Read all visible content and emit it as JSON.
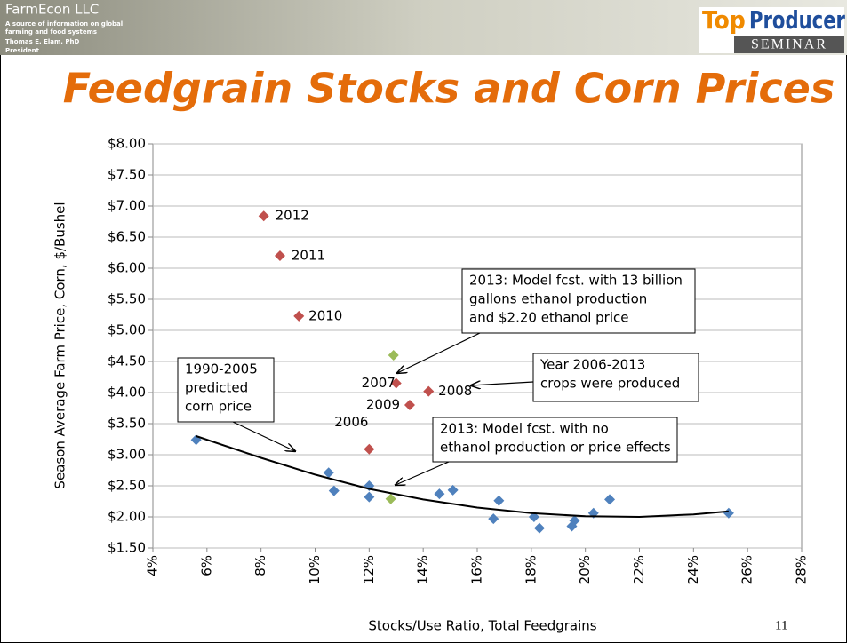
{
  "header": {
    "company": "FarmEcon LLC",
    "tagline": [
      "A source of information on global",
      "farming and food systems"
    ],
    "author": "Thomas E. Elam, PhD",
    "role": "President",
    "logo_top": "Top",
    "logo_producer": "Producer",
    "logo_seminar": "SEMINAR"
  },
  "slide_number": "11",
  "chart_data": {
    "type": "scatter",
    "title": "Feedgrain Stocks and Corn Prices",
    "xlabel": "Stocks/Use Ratio, Total Feedgrains",
    "ylabel": "Season Average Farm Price, Corn, $/Bushel",
    "xlim": [
      4,
      28
    ],
    "ylim": [
      1.5,
      8
    ],
    "xticks": [
      {
        "value": 4,
        "label": "4%"
      },
      {
        "value": 6,
        "label": "6%"
      },
      {
        "value": 8,
        "label": "8%"
      },
      {
        "value": 10,
        "label": "10%"
      },
      {
        "value": 12,
        "label": "12%"
      },
      {
        "value": 14,
        "label": "14%"
      },
      {
        "value": 16,
        "label": "16%"
      },
      {
        "value": 18,
        "label": "18%"
      },
      {
        "value": 20,
        "label": "20%"
      },
      {
        "value": 22,
        "label": "22%"
      },
      {
        "value": 24,
        "label": "24%"
      },
      {
        "value": 26,
        "label": "26%"
      },
      {
        "value": 28,
        "label": "28%"
      }
    ],
    "yticks": [
      {
        "value": 1.5,
        "label": "$1.50"
      },
      {
        "value": 2,
        "label": "$2.00"
      },
      {
        "value": 2.5,
        "label": "$2.50"
      },
      {
        "value": 3,
        "label": "$3.00"
      },
      {
        "value": 3.5,
        "label": "$3.50"
      },
      {
        "value": 4,
        "label": "$4.00"
      },
      {
        "value": 4.5,
        "label": "$4.50"
      },
      {
        "value": 5,
        "label": "$5.00"
      },
      {
        "value": 5.5,
        "label": "$5.50"
      },
      {
        "value": 6,
        "label": "$6.00"
      },
      {
        "value": 6.5,
        "label": "$6.50"
      },
      {
        "value": 7,
        "label": "$7.00"
      },
      {
        "value": 7.5,
        "label": "$7.50"
      },
      {
        "value": 8,
        "label": "$8.00"
      }
    ],
    "grid": true,
    "series": [
      {
        "color": "#4f81bd",
        "x": [
          5.6,
          10.5,
          10.7,
          12.0,
          12.0,
          14.6,
          15.1,
          16.6,
          16.8,
          18.1,
          18.3,
          19.5,
          19.6,
          20.3,
          20.9,
          25.3
        ],
        "values": [
          3.24,
          2.71,
          2.42,
          2.5,
          2.32,
          2.37,
          2.43,
          1.97,
          2.26,
          2.0,
          1.82,
          1.85,
          1.94,
          2.06,
          2.28,
          2.06
        ]
      },
      {
        "color": "#c0504d",
        "x": [
          12.0,
          13.0,
          14.2,
          13.5,
          9.4,
          8.7,
          8.1
        ],
        "values": [
          3.09,
          4.15,
          4.02,
          3.8,
          5.23,
          6.2,
          6.84
        ],
        "labels": [
          "2006",
          "2007",
          "2008",
          "2009",
          "2010",
          "2011",
          "2012"
        ]
      },
      {
        "color": "#9bbb59",
        "x": [
          12.9,
          12.8
        ],
        "values": [
          4.6,
          2.29
        ]
      },
      {
        "type": "line",
        "color": "#000000",
        "x": [
          5.6,
          8,
          10,
          12,
          14,
          16,
          18,
          20,
          22,
          24,
          25.3
        ],
        "values": [
          3.3,
          2.95,
          2.68,
          2.45,
          2.28,
          2.15,
          2.06,
          2.01,
          2.0,
          2.04,
          2.09
        ]
      }
    ],
    "annotations": [
      {
        "lines": [
          "2013: Model fcst. with 13 billion",
          "gallons ethanol production",
          "and $2.20 ethanol price"
        ]
      },
      {
        "lines": [
          "Year 2006-2013",
          "crops were produced"
        ]
      },
      {
        "lines": [
          "1990-2005",
          "predicted",
          "corn price"
        ]
      },
      {
        "lines": [
          "2013: Model fcst. with no",
          "ethanol production or price effects"
        ]
      }
    ]
  }
}
